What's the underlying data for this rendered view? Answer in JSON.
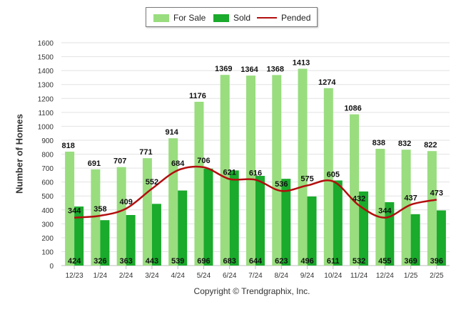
{
  "chart_data": {
    "type": "bar",
    "categories": [
      "12/23",
      "1/24",
      "2/24",
      "3/24",
      "4/24",
      "5/24",
      "6/24",
      "7/24",
      "8/24",
      "9/24",
      "10/24",
      "11/24",
      "12/24",
      "1/25",
      "2/25"
    ],
    "series": [
      {
        "name": "For Sale",
        "type": "bar",
        "color": "#99dd7f",
        "values": [
          818,
          691,
          707,
          771,
          914,
          1176,
          1369,
          1364,
          1368,
          1413,
          1274,
          1086,
          838,
          832,
          822
        ]
      },
      {
        "name": "Sold",
        "type": "bar",
        "color": "#1aaa2c",
        "values": [
          424,
          326,
          363,
          443,
          539,
          696,
          683,
          644,
          623,
          496,
          611,
          532,
          455,
          369,
          396
        ]
      },
      {
        "name": "Pended",
        "type": "line",
        "color": "#b30e0e",
        "values": [
          344,
          358,
          409,
          552,
          684,
          706,
          621,
          616,
          536,
          575,
          605,
          432,
          344,
          437,
          473
        ]
      }
    ],
    "xlabel": "",
    "ylabel": "Number of Homes",
    "ylim": [
      0,
      1600
    ],
    "yticks": [
      0,
      100,
      200,
      300,
      400,
      500,
      600,
      700,
      800,
      900,
      1000,
      1100,
      1200,
      1300,
      1400,
      1500,
      1600
    ],
    "grid": true,
    "legend": "top-center"
  },
  "credit": "Copyright © Trendgraphix, Inc."
}
